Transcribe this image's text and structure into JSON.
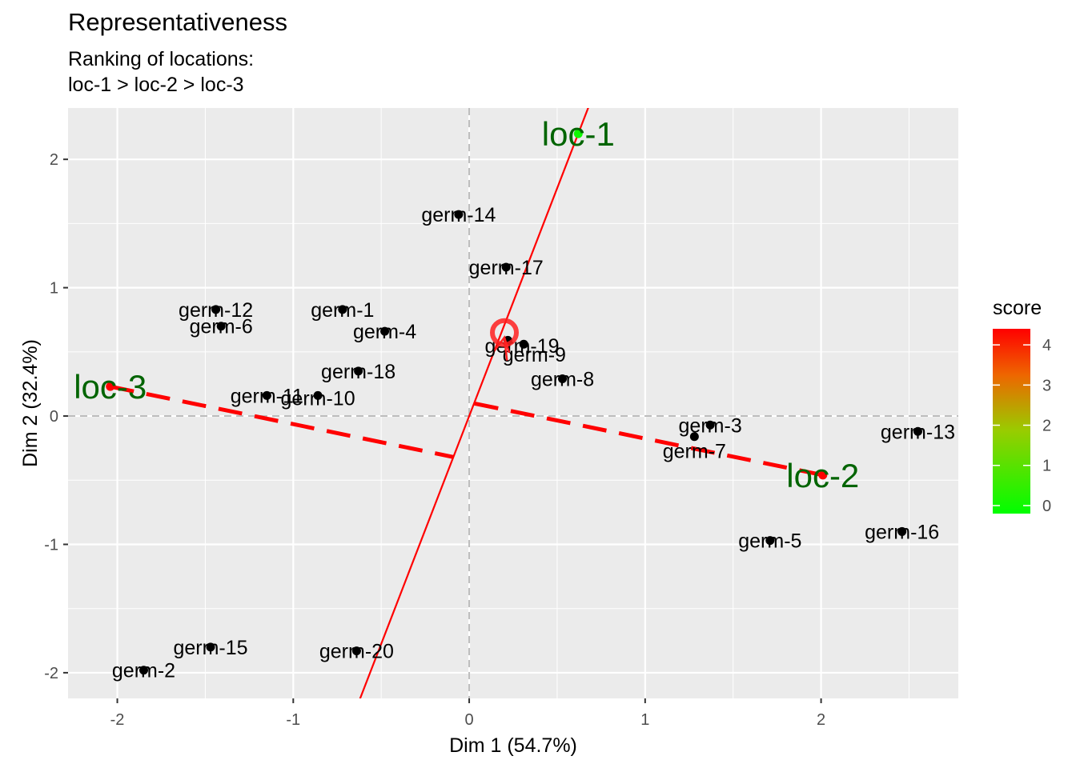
{
  "title": "Representativeness",
  "subtitle_line1": "Ranking of locations:",
  "subtitle_line2": "loc-1 > loc-2 > loc-3",
  "chart_data": {
    "type": "scatter",
    "title": "Representativeness",
    "subtitle": "Ranking of locations:\nloc-1 > loc-2 > loc-3",
    "xlabel": "Dim 1 (54.7%)",
    "ylabel": "Dim 2 (32.4%)",
    "xlim": [
      -2.28,
      2.78
    ],
    "ylim": [
      -2.2,
      2.4
    ],
    "x_ticks": [
      -2,
      -1,
      0,
      1,
      2
    ],
    "y_ticks": [
      -2,
      -1,
      0,
      1,
      2
    ],
    "grid": true,
    "germplasm": [
      {
        "name": "germ-1",
        "x": -0.72,
        "y": 0.83
      },
      {
        "name": "germ-2",
        "x": -1.85,
        "y": -1.98
      },
      {
        "name": "germ-3",
        "x": 1.37,
        "y": -0.07
      },
      {
        "name": "germ-4",
        "x": -0.48,
        "y": 0.66
      },
      {
        "name": "germ-5",
        "x": 1.71,
        "y": -0.97
      },
      {
        "name": "germ-6",
        "x": -1.41,
        "y": 0.7
      },
      {
        "name": "germ-7",
        "x": 1.28,
        "y": -0.16
      },
      {
        "name": "germ-8",
        "x": 0.53,
        "y": 0.29
      },
      {
        "name": "germ-9",
        "x": 0.31,
        "y": 0.56
      },
      {
        "name": "germ-10",
        "x": -0.86,
        "y": 0.16
      },
      {
        "name": "germ-11",
        "x": -1.15,
        "y": 0.16
      },
      {
        "name": "germ-12",
        "x": -1.44,
        "y": 0.83
      },
      {
        "name": "germ-13",
        "x": 2.55,
        "y": -0.12
      },
      {
        "name": "germ-14",
        "x": -0.06,
        "y": 1.57
      },
      {
        "name": "germ-15",
        "x": -1.47,
        "y": -1.8
      },
      {
        "name": "germ-16",
        "x": 2.46,
        "y": -0.9
      },
      {
        "name": "germ-17",
        "x": 0.21,
        "y": 1.16
      },
      {
        "name": "germ-18",
        "x": -0.63,
        "y": 0.35
      },
      {
        "name": "germ-19",
        "x": 0.22,
        "y": 0.59
      },
      {
        "name": "germ-20",
        "x": -0.64,
        "y": -1.83
      }
    ],
    "germ_label_offsets": {
      "germ-9": [
        0.06,
        -0.08
      ],
      "germ-10": [
        0.0,
        -0.02
      ],
      "germ-19": [
        0.08,
        -0.04
      ],
      "germ-7": [
        0.0,
        -0.11
      ],
      "germ-3": [
        0.0,
        0.0
      ]
    },
    "locations": [
      {
        "name": "loc-1",
        "x": 0.62,
        "y": 2.2,
        "score": 0
      },
      {
        "name": "loc-2",
        "x": 2.01,
        "y": -0.46,
        "score": 4.4
      },
      {
        "name": "loc-3",
        "x": -2.04,
        "y": 0.23,
        "score": 4.4
      }
    ],
    "ideal_point": {
      "x": 0.2,
      "y": 0.65
    },
    "average_environment_axis": {
      "slope": 3.55
    },
    "legend": {
      "title": "score",
      "range": [
        -0.2,
        4.4
      ],
      "ticks": [
        0,
        1,
        2,
        3,
        4
      ],
      "colors": [
        "#00ff00",
        "#ff0000"
      ],
      "position": "right"
    },
    "colors": {
      "panel": "#ebebeb",
      "grid": "#ffffff",
      "axis_line": "#ff0000",
      "dashed": "#ff2200",
      "location_label": "#006400",
      "point": "#000000",
      "ideal": "#ff2020"
    }
  }
}
